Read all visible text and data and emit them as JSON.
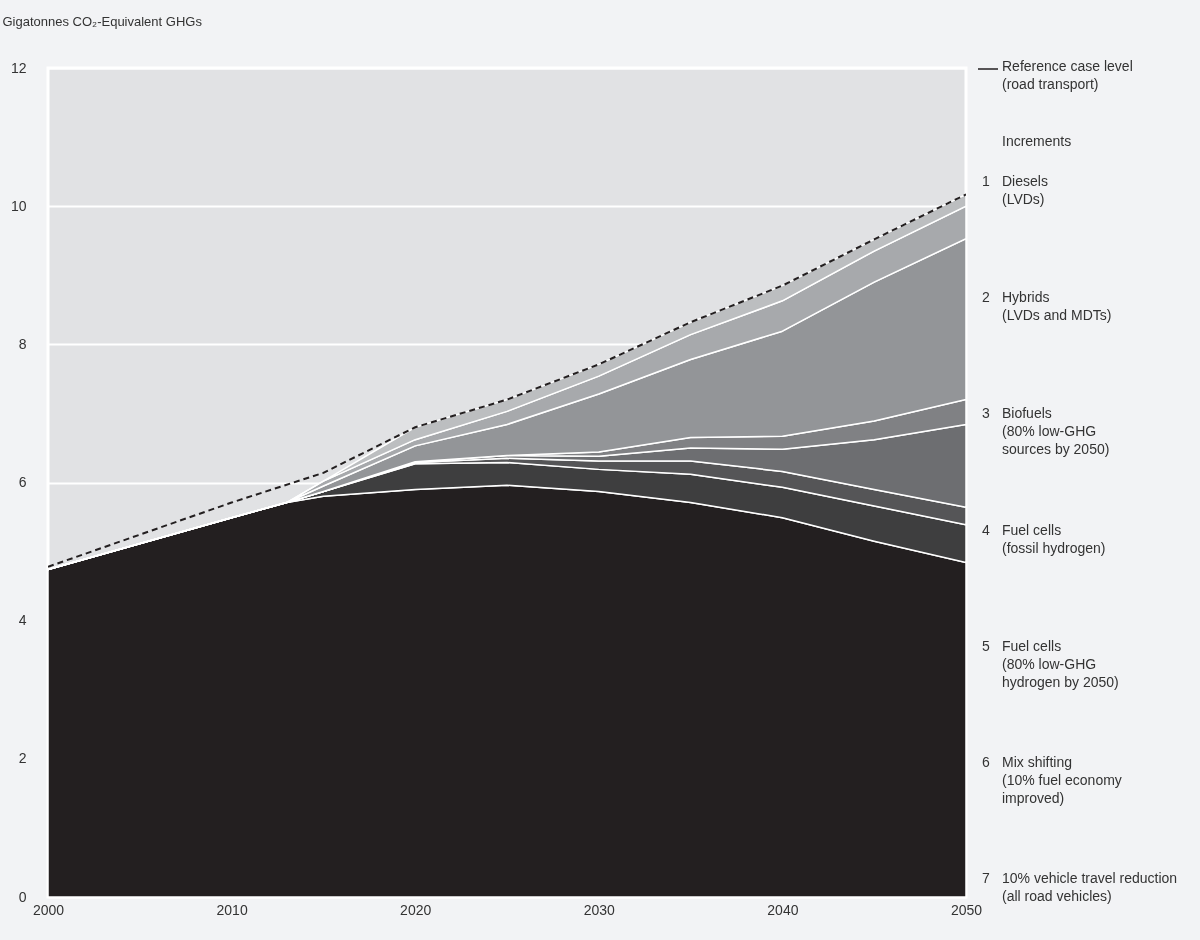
{
  "chart_data": {
    "type": "area",
    "stacked": true,
    "ylabel": "Gigatonnes CO₂-Equivalent GHGs",
    "legend_title": "Increments",
    "legend": "right",
    "grid": "y",
    "x": [
      2000,
      2010,
      2013,
      2015,
      2020,
      2025,
      2030,
      2035,
      2040,
      2045,
      2050
    ],
    "xlim": [
      2000,
      2050
    ],
    "xticks": [
      2000,
      2010,
      2020,
      2030,
      2040,
      2050
    ],
    "ylim": [
      0,
      12
    ],
    "yticks": [
      0,
      2,
      4,
      6,
      8,
      10,
      12
    ],
    "series": [
      {
        "color": "#231f20",
        "values": [
          4.74,
          5.49,
          5.71,
          5.8,
          5.9,
          5.96,
          5.87,
          5.71,
          5.49,
          5.15,
          4.84
        ]
      },
      {
        "name": "7 10% vehicle travel reduction\n(all road vehicles)",
        "color": "#3e3e3f",
        "values": [
          0,
          0,
          0,
          0.07,
          0.37,
          0.33,
          0.32,
          0.41,
          0.44,
          0.51,
          0.55
        ]
      },
      {
        "name": "6 Mix shifting\n(10% fuel economy\nimproved)",
        "color": "#555557",
        "values": [
          0,
          0,
          0,
          0,
          0.02,
          0.06,
          0.12,
          0.19,
          0.23,
          0.24,
          0.25
        ]
      },
      {
        "name": "5 Fuel cells\n(80% low-GHG\nhydrogen by 2050)",
        "color": "#6d6e71",
        "values": [
          0,
          0,
          0,
          0,
          0.01,
          0.04,
          0.07,
          0.19,
          0.32,
          0.72,
          1.2
        ]
      },
      {
        "name": "4 Fuel cells\n(fossil hydrogen)",
        "color": "#808184",
        "values": [
          0,
          0,
          0,
          0,
          0,
          0,
          0.06,
          0.15,
          0.19,
          0.27,
          0.36
        ]
      },
      {
        "name": "3 Biofuels\n(80% low-GHG\nsources by 2050)",
        "color": "#939598",
        "values": [
          0,
          0,
          0,
          0.08,
          0.23,
          0.45,
          0.84,
          1.13,
          1.52,
          2.01,
          2.33
        ]
      },
      {
        "name": "2 Hybrids\n(LVDs and MDTs)",
        "color": "#a7a9ac",
        "values": [
          0,
          0,
          0,
          0.07,
          0.09,
          0.19,
          0.26,
          0.36,
          0.44,
          0.45,
          0.47
        ]
      },
      {
        "name": "1 Diesels\n(LVDs)",
        "color": "#bcbec0",
        "values": [
          0,
          0,
          0,
          0,
          0.18,
          0.17,
          0.17,
          0.18,
          0.22,
          0.17,
          0.17
        ]
      },
      {
        "name": "Reference case level\n(road transport)",
        "type": "line",
        "line_style": "dashed",
        "color": "#231f20",
        "x": [
          2000,
          2010,
          2015,
          2020,
          2025,
          2030,
          2035,
          2040,
          2045,
          2050
        ],
        "values": [
          4.78,
          5.71,
          6.14,
          6.8,
          7.2,
          7.71,
          8.32,
          8.85,
          9.52,
          10.17
        ]
      }
    ]
  }
}
